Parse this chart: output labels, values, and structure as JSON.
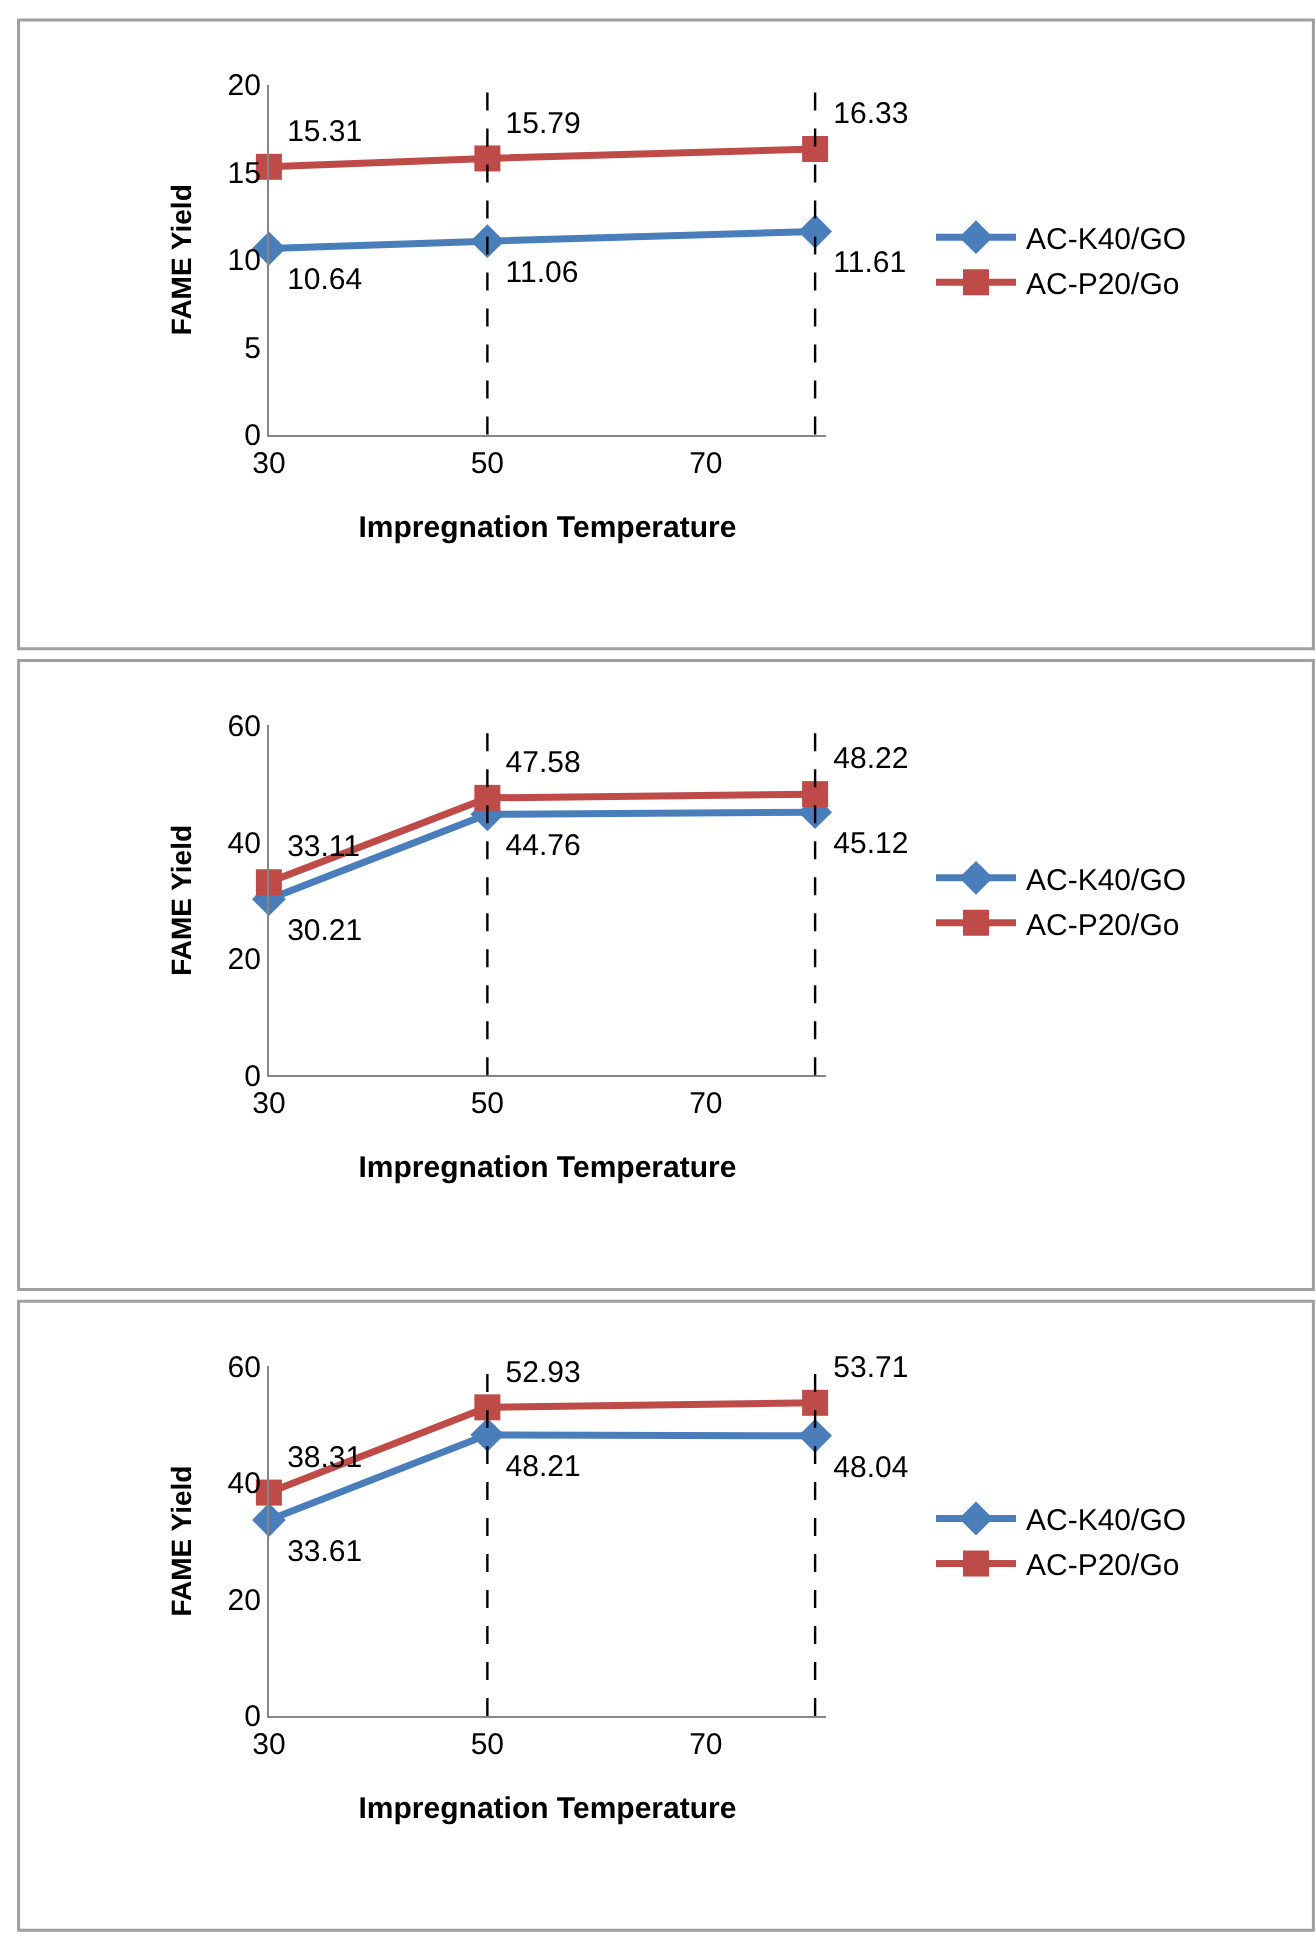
{
  "chart_data": [
    {
      "type": "line",
      "xlabel": "Impregnation Temperature",
      "ylabel": "FAME Yield",
      "x": [
        30,
        50,
        80
      ],
      "xlim": [
        30,
        81
      ],
      "xticks": [
        30,
        50,
        70
      ],
      "ylim": [
        0,
        20
      ],
      "yticks": [
        0,
        5,
        10,
        15,
        20
      ],
      "legend": "right",
      "data_labels": true,
      "series": [
        {
          "name": "AC-K40/GO",
          "color": "#4a7ebb",
          "marker": "diamond",
          "values": [
            10.64,
            11.06,
            11.61
          ]
        },
        {
          "name": "AC-P20/Go",
          "color": "#be4b48",
          "marker": "square",
          "values": [
            15.31,
            15.79,
            16.33
          ]
        }
      ],
      "ref_lines": [
        {
          "axis": "x",
          "value": 50,
          "line_style": "dashed",
          "color": "#000000"
        },
        {
          "axis": "x",
          "value": 80,
          "line_style": "dashed",
          "color": "#000000"
        }
      ]
    },
    {
      "type": "line",
      "xlabel": "Impregnation Temperature",
      "ylabel": "FAME Yield",
      "x": [
        30,
        50,
        80
      ],
      "xlim": [
        30,
        81
      ],
      "xticks": [
        30,
        50,
        70
      ],
      "ylim": [
        0,
        60
      ],
      "yticks": [
        0,
        20,
        40,
        60
      ],
      "legend": "right",
      "data_labels": true,
      "series": [
        {
          "name": "AC-K40/GO",
          "color": "#4a7ebb",
          "marker": "diamond",
          "values": [
            30.21,
            44.76,
            45.12
          ]
        },
        {
          "name": "AC-P20/Go",
          "color": "#be4b48",
          "marker": "square",
          "values": [
            33.11,
            47.58,
            48.22
          ]
        }
      ],
      "ref_lines": [
        {
          "axis": "x",
          "value": 50,
          "line_style": "dashed",
          "color": "#000000"
        },
        {
          "axis": "x",
          "value": 80,
          "line_style": "dashed",
          "color": "#000000"
        }
      ]
    },
    {
      "type": "line",
      "xlabel": "Impregnation Temperature",
      "ylabel": "FAME Yield",
      "x": [
        30,
        50,
        80
      ],
      "xlim": [
        30,
        81
      ],
      "xticks": [
        30,
        50,
        70
      ],
      "ylim": [
        0,
        60
      ],
      "yticks": [
        0,
        20,
        40,
        60
      ],
      "legend": "right",
      "data_labels": true,
      "series": [
        {
          "name": "AC-K40/GO",
          "color": "#4a7ebb",
          "marker": "diamond",
          "values": [
            33.61,
            48.21,
            48.04
          ]
        },
        {
          "name": "AC-P20/Go",
          "color": "#be4b48",
          "marker": "square",
          "values": [
            38.31,
            52.93,
            53.71
          ]
        }
      ],
      "ref_lines": [
        {
          "axis": "x",
          "value": 50,
          "line_style": "dashed",
          "color": "#000000"
        },
        {
          "axis": "x",
          "value": 80,
          "line_style": "dashed",
          "color": "#000000"
        }
      ]
    }
  ]
}
